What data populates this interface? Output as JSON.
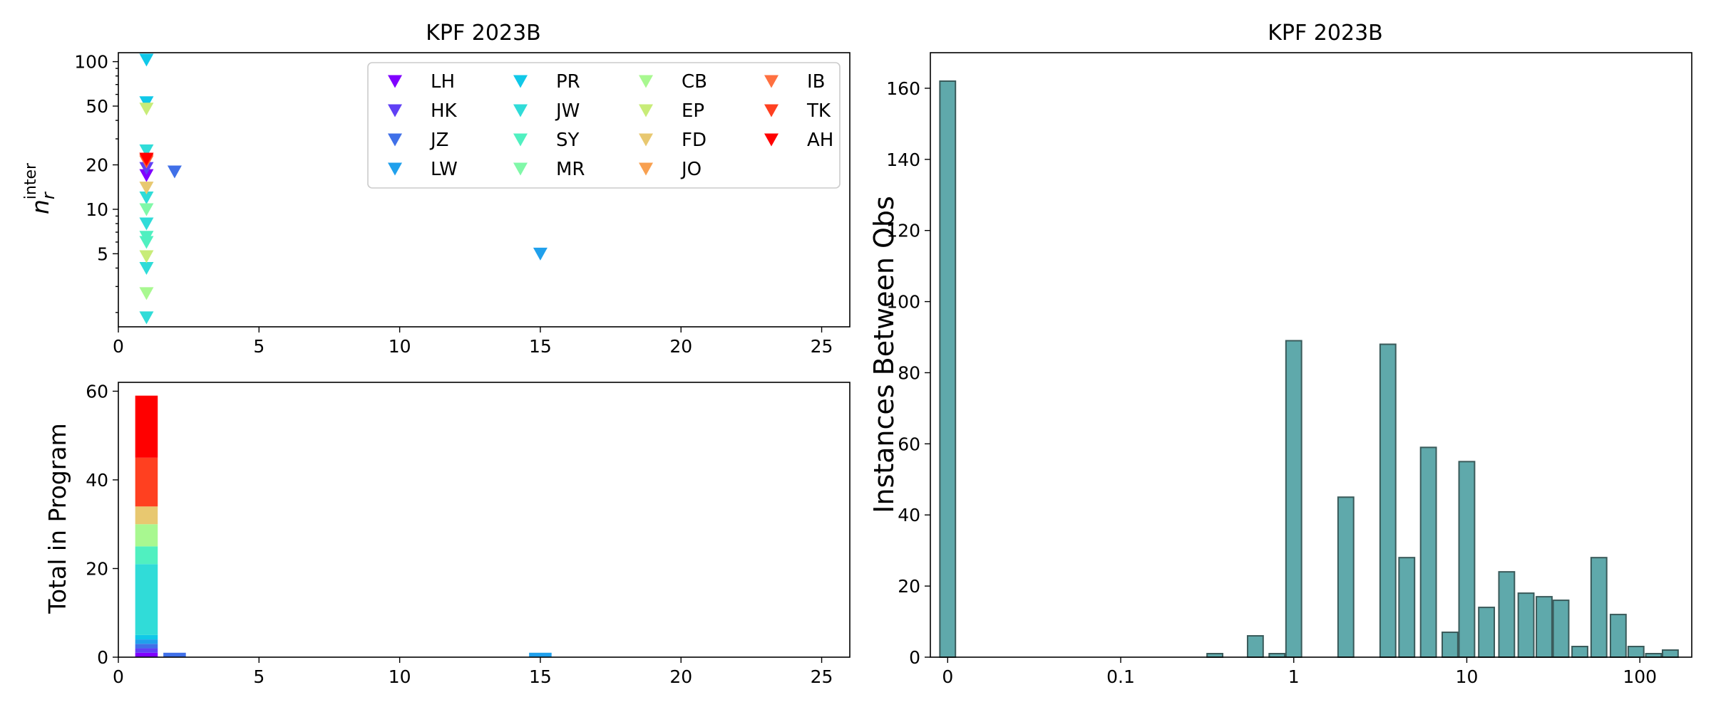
{
  "chart_data": [
    {
      "id": "scatter",
      "type": "scatter",
      "title": "KPF 2023B",
      "xlabel": "",
      "ylabel": "n_r^inter",
      "ylabel_main": "n",
      "ylabel_sub": "r",
      "ylabel_sup": "inter",
      "xlim": [
        0,
        26
      ],
      "ylim_log": [
        1.6,
        115
      ],
      "yscale": "log",
      "x_ticks": [
        0,
        5,
        10,
        15,
        20,
        25
      ],
      "y_ticks": [
        5,
        10,
        20,
        50,
        100
      ],
      "legend_position": "top-right",
      "legend_columns": 4,
      "series": [
        {
          "name": "LH",
          "color": "#8000ff",
          "x": [
            1
          ],
          "y": [
            17
          ]
        },
        {
          "name": "HK",
          "color": "#6040f5",
          "x": [
            1
          ],
          "y": [
            19
          ]
        },
        {
          "name": "JZ",
          "color": "#4070e8",
          "x": [
            2
          ],
          "y": [
            18
          ]
        },
        {
          "name": "LW",
          "color": "#20a0ec",
          "x": [
            15
          ],
          "y": [
            5
          ]
        },
        {
          "name": "PR",
          "color": "#10c8e8",
          "x": [
            1,
            1
          ],
          "y": [
            103,
            53
          ]
        },
        {
          "name": "JW",
          "color": "#30dcd8",
          "x": [
            1,
            1,
            1,
            1,
            1
          ],
          "y": [
            25,
            12,
            8,
            4,
            1.85
          ]
        },
        {
          "name": "SY",
          "color": "#50f0c0",
          "x": [
            1,
            1
          ],
          "y": [
            6.5,
            6
          ]
        },
        {
          "name": "MR",
          "color": "#80f8a8",
          "x": [
            1
          ],
          "y": [
            10
          ]
        },
        {
          "name": "CB",
          "color": "#a8f890",
          "x": [
            1
          ],
          "y": [
            2.7
          ]
        },
        {
          "name": "EP",
          "color": "#c8ec78",
          "x": [
            1,
            1
          ],
          "y": [
            48,
            4.8
          ]
        },
        {
          "name": "FD",
          "color": "#e8c870",
          "x": [
            1
          ],
          "y": [
            14
          ]
        },
        {
          "name": "JO",
          "color": "#f8a050",
          "x": [
            1
          ],
          "y": [
            22
          ]
        },
        {
          "name": "IB",
          "color": "#ff7040",
          "x": [
            1
          ],
          "y": [
            21
          ]
        },
        {
          "name": "TK",
          "color": "#ff4020",
          "x": [
            1
          ],
          "y": [
            21.5
          ]
        },
        {
          "name": "AH",
          "color": "#ff0000",
          "x": [
            1
          ],
          "y": [
            22
          ]
        }
      ]
    },
    {
      "id": "stacked",
      "type": "bar",
      "stacked": true,
      "title": "",
      "xlabel": "",
      "ylabel": "Total in Program",
      "xlim": [
        0,
        26
      ],
      "ylim": [
        0,
        62
      ],
      "x_ticks": [
        0,
        5,
        10,
        15,
        20,
        25
      ],
      "y_ticks": [
        0,
        20,
        40,
        60
      ],
      "bar_width": 0.8,
      "bars": [
        {
          "x": 1,
          "segments": [
            {
              "name": "LH",
              "color": "#8000ff",
              "value": 1
            },
            {
              "name": "HK",
              "color": "#6040f5",
              "value": 1
            },
            {
              "name": "JZ",
              "color": "#4070e8",
              "value": 1
            },
            {
              "name": "LW",
              "color": "#20a0ec",
              "value": 1
            },
            {
              "name": "PR",
              "color": "#10c8e8",
              "value": 1
            },
            {
              "name": "JW",
              "color": "#30dcd8",
              "value": 16
            },
            {
              "name": "SY",
              "color": "#50f0c0",
              "value": 4
            },
            {
              "name": "MR",
              "color": "#80f8a8",
              "value": 0
            },
            {
              "name": "CB",
              "color": "#a8f890",
              "value": 5
            },
            {
              "name": "EP",
              "color": "#c8ec78",
              "value": 0
            },
            {
              "name": "FD",
              "color": "#e8c870",
              "value": 4
            },
            {
              "name": "JO",
              "color": "#f8a050",
              "value": 0
            },
            {
              "name": "IB",
              "color": "#ff7040",
              "value": 0
            },
            {
              "name": "TK",
              "color": "#ff4020",
              "value": 11
            },
            {
              "name": "AH",
              "color": "#ff0000",
              "value": 14
            }
          ]
        },
        {
          "x": 2,
          "segments": [
            {
              "name": "JZ",
              "color": "#4070e8",
              "value": 1
            }
          ]
        },
        {
          "x": 15,
          "segments": [
            {
              "name": "LW",
              "color": "#20a0ec",
              "value": 1
            }
          ]
        }
      ]
    },
    {
      "id": "histogram",
      "type": "bar",
      "title": "KPF 2023B",
      "xlabel": "",
      "ylabel": "Instances Between Obs",
      "xscale": "symlog",
      "xlim_decades": [
        -0.1,
        2.3
      ],
      "ylim": [
        0,
        170
      ],
      "y_ticks": [
        0,
        20,
        40,
        60,
        80,
        100,
        120,
        140,
        160
      ],
      "x_ticks": [
        {
          "label": "0",
          "value": 0
        },
        {
          "label": "0.1",
          "value": 0.1
        },
        {
          "label": "1",
          "value": 1
        },
        {
          "label": "10",
          "value": 10
        },
        {
          "label": "100",
          "value": 100
        }
      ],
      "bar_color": "#5fa9ab",
      "edge_color": "#3a5a5a",
      "bars": [
        {
          "x": 0,
          "value": 162
        },
        {
          "x": 0.35,
          "value": 1
        },
        {
          "x": 0.6,
          "value": 6
        },
        {
          "x": 0.8,
          "value": 1
        },
        {
          "x": 1,
          "value": 89
        },
        {
          "x": 2,
          "value": 45
        },
        {
          "x": 3.5,
          "value": 88
        },
        {
          "x": 4.5,
          "value": 28
        },
        {
          "x": 6,
          "value": 59
        },
        {
          "x": 8,
          "value": 7
        },
        {
          "x": 10,
          "value": 55
        },
        {
          "x": 13,
          "value": 14
        },
        {
          "x": 17,
          "value": 24
        },
        {
          "x": 22,
          "value": 18
        },
        {
          "x": 28,
          "value": 17
        },
        {
          "x": 35,
          "value": 16
        },
        {
          "x": 45,
          "value": 3
        },
        {
          "x": 58,
          "value": 28
        },
        {
          "x": 75,
          "value": 12
        },
        {
          "x": 95,
          "value": 3
        },
        {
          "x": 120,
          "value": 1
        },
        {
          "x": 150,
          "value": 2
        }
      ]
    }
  ]
}
